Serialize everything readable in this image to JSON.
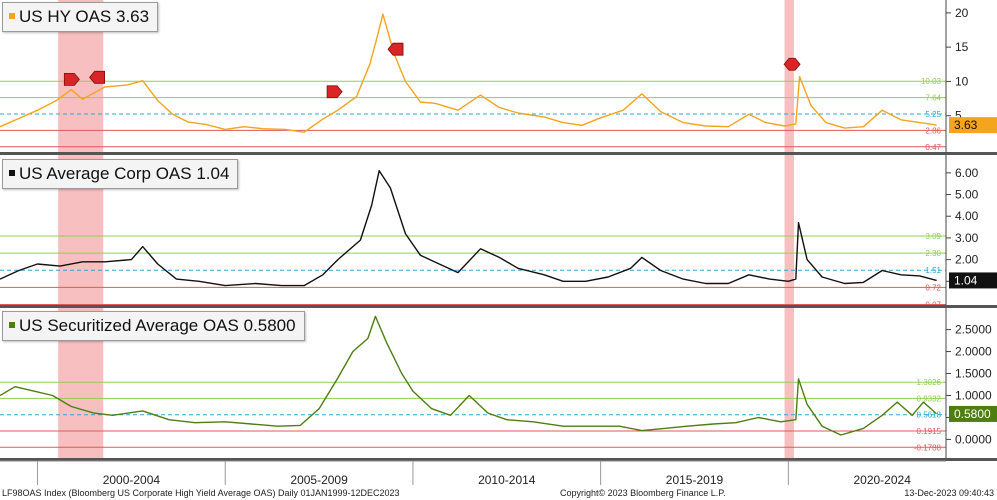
{
  "chart_data": [
    {
      "type": "line",
      "legend": {
        "text": "US HY OAS 3.63",
        "color": "#f5a41d"
      },
      "color": "#f5a41d",
      "ylim": [
        0,
        21
      ],
      "yticks": [
        5,
        10,
        15,
        20
      ],
      "last_value": "3.63",
      "levels": [
        {
          "label": "10.03",
          "value": 10.03,
          "color": "#90d050",
          "style": "solid"
        },
        {
          "label": "7.64",
          "value": 7.64,
          "color": "#90d050",
          "style": "solid"
        },
        {
          "label": "5.25",
          "value": 5.25,
          "color": "#29a8d8",
          "style": "dashed"
        },
        {
          "label": "2.86",
          "value": 2.86,
          "color": "#e05a5a",
          "style": "solid"
        },
        {
          "label": "0.47",
          "value": 0.47,
          "color": "#e05a5a",
          "style": "solid"
        }
      ],
      "series": [
        {
          "points": [
            [
              1999.0,
              3.4
            ],
            [
              1999.5,
              4.6
            ],
            [
              2000.0,
              5.8
            ],
            [
              2000.5,
              7.2
            ],
            [
              2000.9,
              8.8
            ],
            [
              2001.2,
              7.4
            ],
            [
              2001.8,
              9.2
            ],
            [
              2002.4,
              9.5
            ],
            [
              2002.8,
              10.1
            ],
            [
              2003.2,
              7.2
            ],
            [
              2003.6,
              5.2
            ],
            [
              2004.0,
              4.1
            ],
            [
              2004.5,
              3.7
            ],
            [
              2005.0,
              3.0
            ],
            [
              2005.5,
              3.4
            ],
            [
              2006.0,
              3.1
            ],
            [
              2006.6,
              3.0
            ],
            [
              2007.1,
              2.6
            ],
            [
              2007.6,
              4.5
            ],
            [
              2008.0,
              5.8
            ],
            [
              2008.5,
              7.8
            ],
            [
              2008.85,
              12.5
            ],
            [
              2009.0,
              15.5
            ],
            [
              2009.2,
              19.8
            ],
            [
              2009.5,
              14.0
            ],
            [
              2009.8,
              10.0
            ],
            [
              2010.2,
              7.0
            ],
            [
              2010.6,
              6.8
            ],
            [
              2011.2,
              5.8
            ],
            [
              2011.8,
              8.0
            ],
            [
              2012.3,
              6.2
            ],
            [
              2012.8,
              5.4
            ],
            [
              2013.5,
              4.8
            ],
            [
              2014.0,
              4.0
            ],
            [
              2014.5,
              3.6
            ],
            [
              2015.0,
              4.7
            ],
            [
              2015.6,
              5.8
            ],
            [
              2016.1,
              8.2
            ],
            [
              2016.6,
              5.6
            ],
            [
              2017.2,
              4.0
            ],
            [
              2017.8,
              3.5
            ],
            [
              2018.4,
              3.4
            ],
            [
              2018.95,
              5.2
            ],
            [
              2019.4,
              4.0
            ],
            [
              2019.9,
              3.5
            ],
            [
              2020.2,
              3.8
            ],
            [
              2020.3,
              10.7
            ],
            [
              2020.6,
              6.5
            ],
            [
              2021.0,
              4.0
            ],
            [
              2021.5,
              3.2
            ],
            [
              2022.0,
              3.4
            ],
            [
              2022.5,
              5.8
            ],
            [
              2023.0,
              4.4
            ],
            [
              2023.5,
              4.0
            ],
            [
              2023.95,
              3.63
            ]
          ]
        }
      ]
    },
    {
      "type": "line",
      "legend": {
        "text": "US Average Corp OAS 1.04",
        "color": "#111111"
      },
      "color": "#111111",
      "ylim": [
        0.0,
        6.5
      ],
      "yticks": [
        1.0,
        2.0,
        3.0,
        4.0,
        5.0,
        6.0
      ],
      "ytick_labels": [
        "1.00",
        "2.00",
        "3.00",
        "4.00",
        "5.00",
        "6.00"
      ],
      "last_value": "1.04",
      "levels": [
        {
          "label": "3.09",
          "value": 3.09,
          "color": "#90d050",
          "style": "solid"
        },
        {
          "label": "2.30",
          "value": 2.3,
          "color": "#90d050",
          "style": "solid"
        },
        {
          "label": "1.51",
          "value": 1.51,
          "color": "#29a8d8",
          "style": "dashed"
        },
        {
          "label": "0.72",
          "value": 0.72,
          "color": "#e05a5a",
          "style": "solid"
        },
        {
          "label": "-0.07",
          "value": -0.07,
          "color": "#e05a5a",
          "style": "solid"
        }
      ],
      "series": [
        {
          "points": [
            [
              1999.0,
              1.1
            ],
            [
              1999.5,
              1.5
            ],
            [
              2000.0,
              1.8
            ],
            [
              2000.6,
              1.7
            ],
            [
              2001.2,
              1.9
            ],
            [
              2001.8,
              1.9
            ],
            [
              2002.5,
              2.0
            ],
            [
              2002.8,
              2.6
            ],
            [
              2003.2,
              1.8
            ],
            [
              2003.7,
              1.1
            ],
            [
              2004.3,
              1.0
            ],
            [
              2005.0,
              0.8
            ],
            [
              2005.8,
              0.9
            ],
            [
              2006.5,
              0.8
            ],
            [
              2007.1,
              0.8
            ],
            [
              2007.6,
              1.3
            ],
            [
              2008.0,
              2.0
            ],
            [
              2008.6,
              2.9
            ],
            [
              2008.9,
              4.5
            ],
            [
              2009.1,
              6.1
            ],
            [
              2009.4,
              5.3
            ],
            [
              2009.8,
              3.2
            ],
            [
              2010.2,
              2.2
            ],
            [
              2010.7,
              1.8
            ],
            [
              2011.2,
              1.4
            ],
            [
              2011.8,
              2.5
            ],
            [
              2012.3,
              2.1
            ],
            [
              2012.8,
              1.6
            ],
            [
              2013.5,
              1.3
            ],
            [
              2014.0,
              1.0
            ],
            [
              2014.6,
              1.0
            ],
            [
              2015.2,
              1.2
            ],
            [
              2015.8,
              1.6
            ],
            [
              2016.1,
              2.1
            ],
            [
              2016.6,
              1.5
            ],
            [
              2017.2,
              1.1
            ],
            [
              2017.8,
              0.9
            ],
            [
              2018.4,
              0.9
            ],
            [
              2018.95,
              1.3
            ],
            [
              2019.5,
              1.1
            ],
            [
              2020.0,
              1.0
            ],
            [
              2020.2,
              1.1
            ],
            [
              2020.27,
              3.7
            ],
            [
              2020.5,
              2.0
            ],
            [
              2020.9,
              1.2
            ],
            [
              2021.5,
              0.9
            ],
            [
              2022.0,
              0.95
            ],
            [
              2022.5,
              1.5
            ],
            [
              2023.0,
              1.3
            ],
            [
              2023.5,
              1.25
            ],
            [
              2023.95,
              1.04
            ]
          ]
        }
      ]
    },
    {
      "type": "line",
      "legend": {
        "text": "US Securitized Average OAS 0.5800",
        "color": "#4e7e12"
      },
      "color": "#4e7e12",
      "ylim": [
        -0.4,
        2.9
      ],
      "yticks": [
        0.0,
        0.5,
        1.0,
        1.5,
        2.0,
        2.5
      ],
      "ytick_labels": [
        "0.0000",
        "0.5000",
        "1.0000",
        "1.5000",
        "2.0000",
        "2.5000"
      ],
      "last_value": "0.5800",
      "levels": [
        {
          "label": "1.3026",
          "value": 1.3026,
          "color": "#90d050",
          "style": "solid"
        },
        {
          "label": "0.9332",
          "value": 0.9332,
          "color": "#90d050",
          "style": "solid"
        },
        {
          "label": "0.5618",
          "value": 0.5618,
          "color": "#29a8d8",
          "style": "dashed"
        },
        {
          "label": "0.1915",
          "value": 0.1915,
          "color": "#e05a5a",
          "style": "solid"
        },
        {
          "label": "-0.1788",
          "value": -0.1788,
          "color": "#e05a5a",
          "style": "solid"
        }
      ],
      "series": [
        {
          "points": [
            [
              1999.0,
              1.0
            ],
            [
              1999.4,
              1.2
            ],
            [
              1999.9,
              1.1
            ],
            [
              2000.4,
              1.0
            ],
            [
              2000.9,
              0.75
            ],
            [
              2001.5,
              0.6
            ],
            [
              2002.0,
              0.55
            ],
            [
              2002.8,
              0.65
            ],
            [
              2003.5,
              0.45
            ],
            [
              2004.2,
              0.38
            ],
            [
              2005.0,
              0.4
            ],
            [
              2005.7,
              0.35
            ],
            [
              2006.4,
              0.3
            ],
            [
              2007.0,
              0.32
            ],
            [
              2007.5,
              0.7
            ],
            [
              2008.0,
              1.4
            ],
            [
              2008.4,
              2.0
            ],
            [
              2008.8,
              2.3
            ],
            [
              2009.0,
              2.8
            ],
            [
              2009.3,
              2.2
            ],
            [
              2009.7,
              1.5
            ],
            [
              2010.0,
              1.1
            ],
            [
              2010.5,
              0.7
            ],
            [
              2011.0,
              0.55
            ],
            [
              2011.5,
              1.0
            ],
            [
              2012.0,
              0.6
            ],
            [
              2012.5,
              0.45
            ],
            [
              2013.2,
              0.4
            ],
            [
              2014.0,
              0.3
            ],
            [
              2014.8,
              0.3
            ],
            [
              2015.5,
              0.3
            ],
            [
              2016.1,
              0.2
            ],
            [
              2016.7,
              0.25
            ],
            [
              2017.3,
              0.3
            ],
            [
              2018.0,
              0.35
            ],
            [
              2018.6,
              0.38
            ],
            [
              2019.2,
              0.5
            ],
            [
              2019.8,
              0.4
            ],
            [
              2020.2,
              0.45
            ],
            [
              2020.27,
              1.38
            ],
            [
              2020.5,
              0.8
            ],
            [
              2020.9,
              0.3
            ],
            [
              2021.4,
              0.1
            ],
            [
              2022.0,
              0.25
            ],
            [
              2022.5,
              0.55
            ],
            [
              2022.9,
              0.85
            ],
            [
              2023.3,
              0.55
            ],
            [
              2023.6,
              0.85
            ],
            [
              2023.95,
              0.58
            ]
          ]
        }
      ]
    }
  ],
  "x_axis": {
    "range": [
      1999.0,
      2024.2
    ],
    "period_labels": [
      "2000-2004",
      "2005-2009",
      "2010-2014",
      "2015-2019",
      "2020-2024"
    ],
    "separators": [
      2000.0,
      2005.0,
      2010.0,
      2015.0,
      2020.0
    ]
  },
  "highlight_bands": [
    {
      "from": 2000.55,
      "to": 2001.75,
      "color": "#f4a9a9"
    },
    {
      "from": 2019.9,
      "to": 2020.15,
      "color": "#f4a9a9"
    }
  ],
  "markers": [
    {
      "x": 2000.9,
      "y": 10.3,
      "direction": "right"
    },
    {
      "x": 2001.6,
      "y": 10.6,
      "direction": "left"
    },
    {
      "x": 2007.9,
      "y": 8.5,
      "direction": "right"
    },
    {
      "x": 2009.55,
      "y": 14.7,
      "direction": "left"
    },
    {
      "x": 2020.1,
      "y": 12.5,
      "direction": "both"
    }
  ],
  "footer": {
    "left": "LF98OAS Index (Bloomberg US Corporate High Yield Average OAS)  Daily 01JAN1999-12DEC2023",
    "center": "Copyright© 2023 Bloomberg Finance L.P.",
    "right": "13-Dec-2023 09:40:43"
  }
}
